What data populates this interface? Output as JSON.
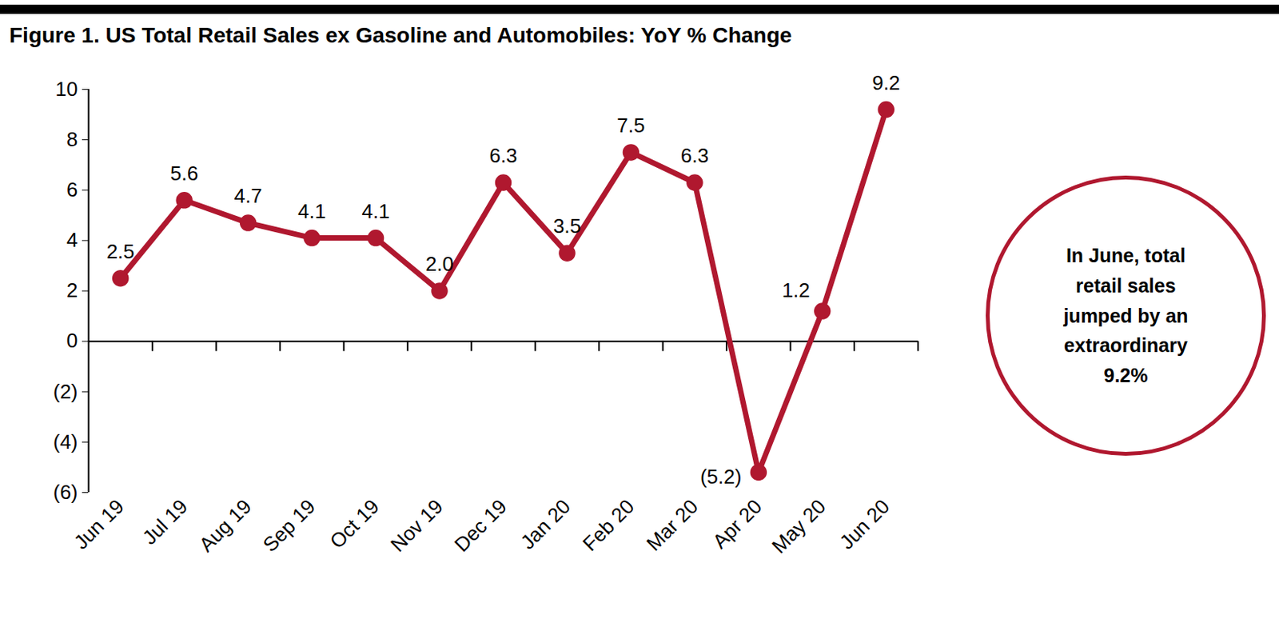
{
  "chart_data": {
    "type": "line",
    "title": "Figure 1. US Total Retail Sales ex Gasoline and Automobiles: YoY % Change",
    "annotation": "In June, total retail sales jumped by an extraordinary 9.2%",
    "categories": [
      "Jun 19",
      "Jul 19",
      "Aug 19",
      "Sep 19",
      "Oct 19",
      "Nov 19",
      "Dec 19",
      "Jan 20",
      "Feb 20",
      "Mar 20",
      "Apr 20",
      "May 20",
      "Jun 20"
    ],
    "values": [
      2.5,
      5.6,
      4.7,
      4.1,
      4.1,
      2.0,
      6.3,
      3.5,
      7.5,
      6.3,
      -5.2,
      1.2,
      9.2
    ],
    "value_labels": [
      "2.5",
      "5.6",
      "4.7",
      "4.1",
      "4.1",
      "2.0",
      "6.3",
      "3.5",
      "7.5",
      "6.3",
      "(5.2)",
      "1.2",
      "9.2"
    ],
    "color": "#b0182f",
    "marker": "circle",
    "ylim": [
      -6,
      10
    ],
    "yticks": [
      {
        "value": -6,
        "label": "(6)"
      },
      {
        "value": -4,
        "label": "(4)"
      },
      {
        "value": -2,
        "label": "(2)"
      },
      0,
      2,
      4,
      6,
      8,
      10
    ],
    "grid": false,
    "data_labels": true
  }
}
